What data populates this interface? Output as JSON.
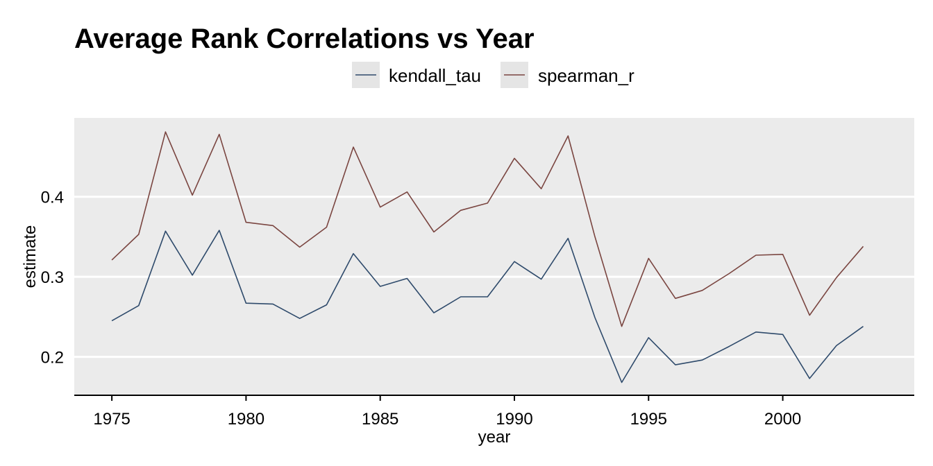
{
  "chart_data": {
    "type": "line",
    "title": "Average Rank Correlations vs Year",
    "xlabel": "year",
    "ylabel": "estimate",
    "xlim": [
      1973.6,
      2004.9
    ],
    "ylim": [
      0.152,
      0.4985
    ],
    "x_ticks": [
      1975,
      1980,
      1985,
      1990,
      1995,
      2000
    ],
    "y_ticks": [
      0.2,
      0.3,
      0.4
    ],
    "y_tick_labels": [
      "0.2",
      "0.3",
      "0.4"
    ],
    "grid": true,
    "legend_position": "top",
    "x": [
      1975,
      1976,
      1977,
      1978,
      1979,
      1980,
      1981,
      1982,
      1983,
      1984,
      1985,
      1986,
      1987,
      1988,
      1989,
      1990,
      1991,
      1992,
      1993,
      1994,
      1995,
      1996,
      1997,
      1998,
      1999,
      2000,
      2001,
      2002,
      2003
    ],
    "series": [
      {
        "name": "kendall_tau",
        "color": "#2e4a6b",
        "values": [
          0.245,
          0.264,
          0.357,
          0.302,
          0.358,
          0.267,
          0.266,
          0.248,
          0.265,
          0.329,
          0.288,
          0.298,
          0.255,
          0.275,
          0.275,
          0.319,
          0.297,
          0.348,
          0.249,
          0.168,
          0.224,
          0.19,
          0.196,
          0.213,
          0.231,
          0.228,
          0.173,
          0.214,
          0.238
        ]
      },
      {
        "name": "spearman_r",
        "color": "#7a4540",
        "values": [
          0.321,
          0.353,
          0.481,
          0.402,
          0.478,
          0.368,
          0.364,
          0.337,
          0.362,
          0.462,
          0.387,
          0.406,
          0.356,
          0.383,
          0.392,
          0.448,
          0.41,
          0.476,
          0.35,
          0.238,
          0.323,
          0.273,
          0.283,
          0.304,
          0.327,
          0.328,
          0.252,
          0.299,
          0.338
        ]
      }
    ]
  },
  "colors": {
    "panel_background": "#ebebeb",
    "grid_line": "#ffffff",
    "legend_key_background": "#e5e5e5"
  }
}
